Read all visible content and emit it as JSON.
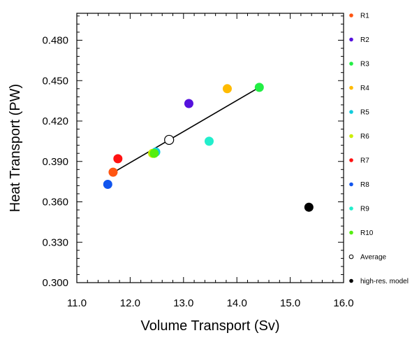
{
  "chart_data": {
    "type": "scatter",
    "xlabel": "Volume Transport (Sv)",
    "ylabel": "Heat Transport (PW)",
    "xlim": [
      11.0,
      16.0
    ],
    "ylim": [
      0.3,
      0.5
    ],
    "x_ticks": [
      "11.0",
      "12.0",
      "13.0",
      "14.0",
      "15.0",
      "16.0"
    ],
    "y_ticks": [
      "0.300",
      "0.330",
      "0.360",
      "0.390",
      "0.420",
      "0.450",
      "0.480"
    ],
    "x_tick_values": [
      11.0,
      12.0,
      13.0,
      14.0,
      15.0,
      16.0
    ],
    "y_tick_values": [
      0.3,
      0.33,
      0.36,
      0.39,
      0.42,
      0.45,
      0.48
    ],
    "legend_position": "right",
    "grid": false,
    "fit_line": {
      "x": [
        11.65,
        14.42
      ],
      "y": [
        0.381,
        0.445
      ]
    },
    "series": [
      {
        "name": "R1",
        "x": 11.68,
        "y": 0.382,
        "color": "#ff5511",
        "marker": "filled"
      },
      {
        "name": "R2",
        "x": 13.1,
        "y": 0.433,
        "color": "#5511dd",
        "marker": "filled"
      },
      {
        "name": "R3",
        "x": 14.42,
        "y": 0.445,
        "color": "#22ee44",
        "marker": "filled"
      },
      {
        "name": "R4",
        "x": 13.82,
        "y": 0.444,
        "color": "#ffbb00",
        "marker": "filled"
      },
      {
        "name": "R5",
        "x": 12.48,
        "y": 0.397,
        "color": "#11ccdd",
        "marker": "filled"
      },
      {
        "name": "R6",
        "x": 12.42,
        "y": 0.396,
        "color": "#ccee00",
        "marker": "filled"
      },
      {
        "name": "R7",
        "x": 11.77,
        "y": 0.392,
        "color": "#ff1111",
        "marker": "filled"
      },
      {
        "name": "R8",
        "x": 11.58,
        "y": 0.373,
        "color": "#1155ee",
        "marker": "filled"
      },
      {
        "name": "R9",
        "x": 13.48,
        "y": 0.405,
        "color": "#22eecc",
        "marker": "filled"
      },
      {
        "name": "R10",
        "x": 12.45,
        "y": 0.396,
        "color": "#55ee11",
        "marker": "filled"
      },
      {
        "name": "Average",
        "x": 12.73,
        "y": 0.406,
        "color": "#000000",
        "marker": "open"
      },
      {
        "name": "high-res. model",
        "x": 15.35,
        "y": 0.356,
        "color": "#000000",
        "marker": "filled"
      }
    ]
  }
}
